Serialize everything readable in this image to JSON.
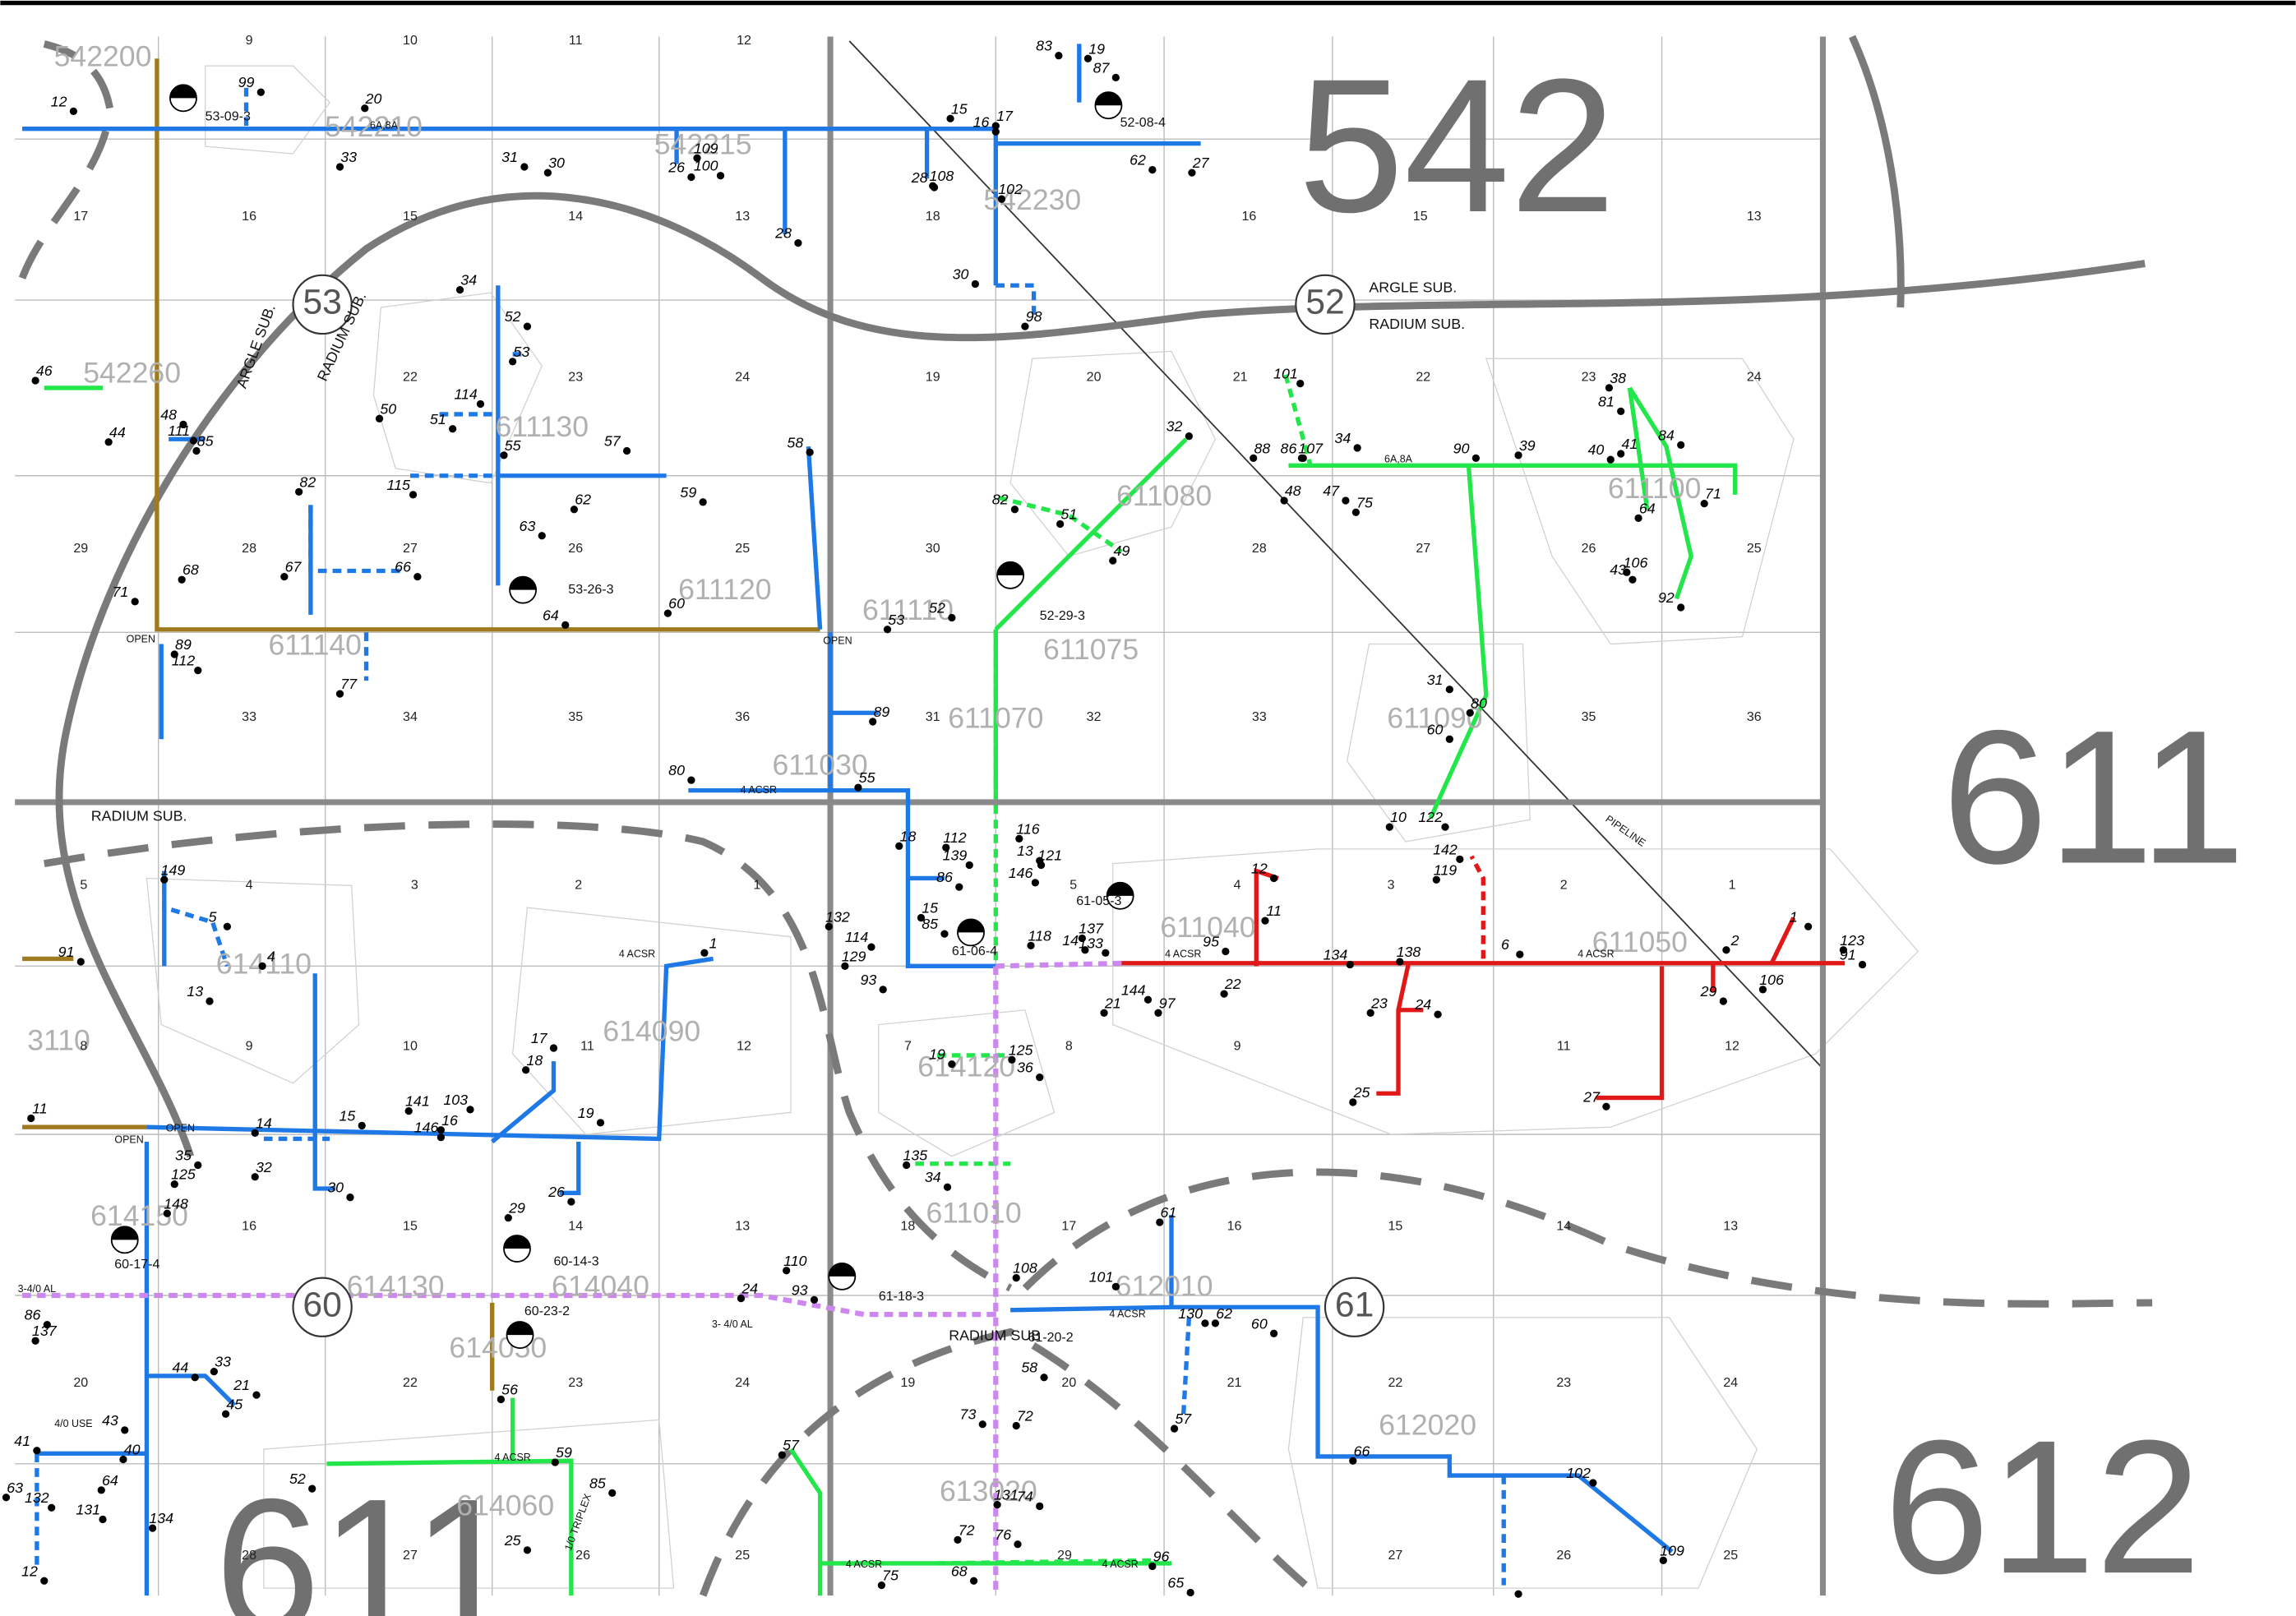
{
  "area_numbers": [
    "542",
    "611",
    "612",
    "611"
  ],
  "substation_circles": [
    "53",
    "52",
    "60",
    "61"
  ],
  "substation_names": [
    "ARGLE SUB.",
    "RADIUM SUB.",
    "ARGLE SUB.",
    "RADIUM SUB.",
    "RADIUM SUB.",
    "RADIUM SUB"
  ],
  "feeder_ids": [
    "542200",
    "542210",
    "542215",
    "542230",
    "542260",
    "611130",
    "611120",
    "611140",
    "611110",
    "611080",
    "611075",
    "611070",
    "611090",
    "611100",
    "611030",
    "611040",
    "611050",
    "614110",
    "614090",
    "614120",
    "614130",
    "614150",
    "614040",
    "614050",
    "614060",
    "612010",
    "612020",
    "613020",
    "611010",
    "3110"
  ],
  "sections": [
    "9",
    "10",
    "11",
    "12",
    "17",
    "16",
    "15",
    "14",
    "13",
    "18",
    "16",
    "15",
    "13",
    "22",
    "23",
    "24",
    "19",
    "20",
    "21",
    "22",
    "23",
    "24",
    "29",
    "28",
    "27",
    "26",
    "25",
    "30",
    "28",
    "27",
    "26",
    "25",
    "33",
    "34",
    "35",
    "36",
    "31",
    "32",
    "33",
    "35",
    "36",
    "5",
    "4",
    "3",
    "2",
    "1",
    "5",
    "4",
    "3",
    "2",
    "1",
    "8",
    "9",
    "10",
    "11",
    "12",
    "7",
    "8",
    "9",
    "11",
    "12",
    "16",
    "15",
    "14",
    "13",
    "18",
    "17",
    "16",
    "15",
    "14",
    "13",
    "20",
    "22",
    "23",
    "24",
    "19",
    "20",
    "21",
    "22",
    "23",
    "24",
    "28",
    "27",
    "26",
    "25",
    "29",
    "27",
    "26",
    "25"
  ],
  "poles": [
    "99",
    "20",
    "12",
    "33",
    "31",
    "30",
    "26",
    "109",
    "100",
    "15",
    "16",
    "17",
    "28",
    "108",
    "62",
    "27",
    "83",
    "19",
    "87",
    "102",
    "30",
    "98",
    "28",
    "34",
    "52",
    "53",
    "114",
    "50",
    "51",
    "46",
    "48",
    "44",
    "111",
    "85",
    "57",
    "55",
    "115",
    "62",
    "59",
    "82",
    "63",
    "67",
    "66",
    "68",
    "71",
    "89",
    "112",
    "77",
    "64",
    "60",
    "58",
    "53",
    "52",
    "89",
    "80",
    "55",
    "32",
    "51",
    "82",
    "49",
    "101",
    "88",
    "86",
    "107",
    "34",
    "48",
    "47",
    "75",
    "90",
    "39",
    "40",
    "41",
    "84",
    "38",
    "81",
    "64",
    "43",
    "106",
    "92",
    "71",
    "31",
    "80",
    "60",
    "10",
    "122",
    "18",
    "86",
    "15",
    "85",
    "132",
    "114",
    "129",
    "93",
    "112",
    "139",
    "116",
    "13",
    "121",
    "146",
    "118",
    "14",
    "137",
    "133",
    "21",
    "144",
    "97",
    "95",
    "22",
    "12",
    "11",
    "134",
    "138",
    "142",
    "119",
    "6",
    "23",
    "24",
    "25",
    "27",
    "2",
    "1",
    "123",
    "91",
    "106",
    "29",
    "149",
    "5",
    "4",
    "13",
    "1",
    "91",
    "11",
    "17",
    "18",
    "19",
    "141",
    "103",
    "16",
    "146",
    "14",
    "15",
    "32",
    "35",
    "125",
    "30",
    "148",
    "26",
    "29",
    "86",
    "137",
    "44",
    "33",
    "21",
    "45",
    "43",
    "40",
    "41",
    "64",
    "132",
    "63",
    "131",
    "134",
    "12",
    "56",
    "85",
    "59",
    "52",
    "57",
    "25",
    "24",
    "93",
    "110",
    "19",
    "125",
    "36",
    "135",
    "34",
    "108",
    "101",
    "61",
    "130",
    "62",
    "60",
    "57",
    "58",
    "72",
    "73",
    "131",
    "74",
    "72",
    "76",
    "75",
    "68",
    "96",
    "65",
    "66",
    "102",
    "109"
  ],
  "line_notes": [
    "OPEN",
    "OPEN",
    "OPEN",
    "OPEN",
    "4 ACSR",
    "4 ACSR",
    "4 ACSR",
    "4 ACSR",
    "4/0 USE",
    "1/0 TRIPLEX",
    "3-4/0 AL",
    "3- 4/0 AL",
    "PIPELINE",
    "6A,8A",
    "6A,8A",
    "4 ACSR",
    "4 ACSR",
    "4 ACSR",
    "4 ACSR"
  ],
  "transformers": [
    "53-09-3",
    "52-08-4",
    "53-26-3",
    "52-29-3",
    "61-05-3",
    "61-06-4",
    "60-17-4",
    "60-14-3",
    "60-23-2",
    "61-18-3",
    "61-20-2"
  ]
}
